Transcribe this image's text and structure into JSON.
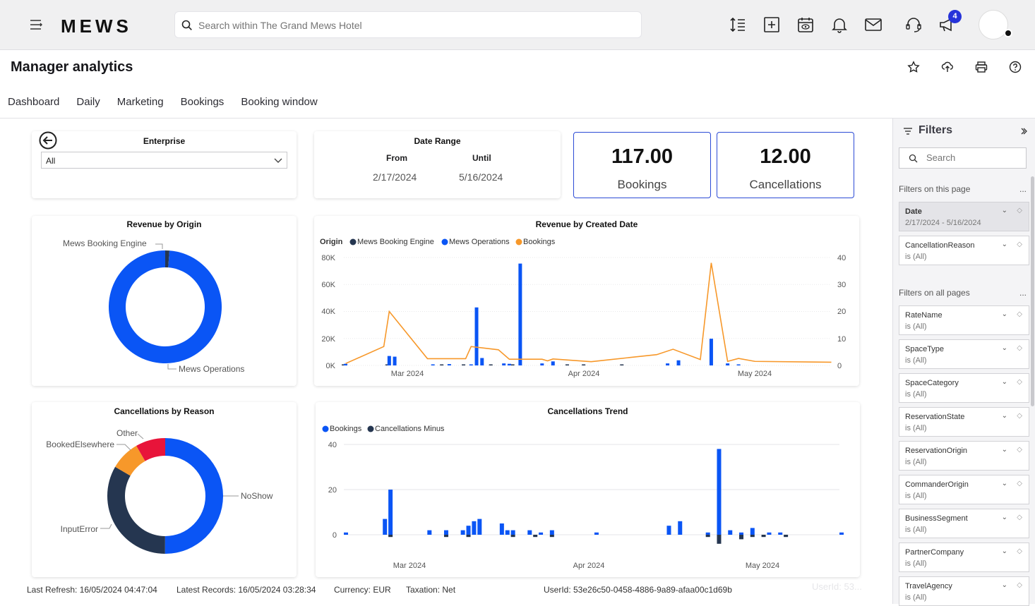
{
  "app": {
    "logo": "MEWS",
    "search_placeholder": "Search within The Grand Mews Hotel",
    "notification_count": "4"
  },
  "page": {
    "title": "Manager analytics",
    "tabs": [
      "Dashboard",
      "Daily",
      "Marketing",
      "Bookings",
      "Booking window"
    ]
  },
  "enterprise": {
    "title": "Enterprise",
    "value": "All"
  },
  "date_range": {
    "title": "Date Range",
    "from_label": "From",
    "until_label": "Until",
    "from": "2/17/2024",
    "until": "5/16/2024"
  },
  "kpis": [
    {
      "value": "117.00",
      "label": "Bookings"
    },
    {
      "value": "12.00",
      "label": "Cancellations"
    }
  ],
  "colors": {
    "blue": "#0a55f5",
    "navy": "#253650",
    "orange": "#f7982a",
    "red": "#e8143a",
    "accent": "#2c4bd6"
  },
  "chart_data": [
    {
      "type": "pie",
      "title": "Revenue by Origin",
      "labels": [
        "Mews Booking Engine",
        "Mews Operations"
      ],
      "values": [
        1.2,
        98.8
      ]
    },
    {
      "type": "bar",
      "title": "Revenue by Created Date",
      "legend_title": "Origin",
      "legend": [
        "Mews Booking Engine",
        "Mews Operations",
        "Bookings"
      ],
      "x_ticks": [
        "Mar 2024",
        "Apr 2024",
        "May 2024"
      ],
      "y_ticks": [
        "80K",
        "60K",
        "40K",
        "20K",
        "0K"
      ],
      "y2_ticks": [
        "40",
        "30",
        "20",
        "10",
        "0"
      ],
      "ylim": [
        0,
        80000
      ],
      "y2lim": [
        0,
        40
      ],
      "x_domain": [
        0,
        89
      ],
      "series": [
        {
          "name": "Mews Booking Engine",
          "kind": "bar",
          "points": [
            [
              0,
              400
            ],
            [
              8,
              200
            ],
            [
              18,
              300
            ],
            [
              22,
              400
            ],
            [
              27,
              300
            ],
            [
              31,
              800
            ],
            [
              41,
              200
            ],
            [
              44,
              300
            ],
            [
              51,
              300
            ]
          ]
        },
        {
          "name": "Mews Operations",
          "kind": "bar",
          "points": [
            [
              0,
              1200
            ],
            [
              8,
              7000
            ],
            [
              9,
              6500
            ],
            [
              16,
              800
            ],
            [
              19,
              1000
            ],
            [
              23,
              500
            ],
            [
              24,
              43000
            ],
            [
              25,
              5500
            ],
            [
              29,
              1500
            ],
            [
              30,
              1200
            ],
            [
              32,
              75500
            ],
            [
              36,
              1500
            ],
            [
              38,
              3000
            ],
            [
              59,
              1500
            ],
            [
              61,
              3800
            ],
            [
              67,
              19800
            ],
            [
              70,
              1500
            ],
            [
              72,
              600
            ]
          ]
        },
        {
          "name": "Bookings",
          "kind": "line",
          "points": [
            [
              0,
              0.7
            ],
            [
              7,
              7
            ],
            [
              8,
              20
            ],
            [
              15,
              2.5
            ],
            [
              22,
              2.5
            ],
            [
              23,
              7
            ],
            [
              28,
              5.8
            ],
            [
              30,
              2.3
            ],
            [
              36,
              2.3
            ],
            [
              37,
              1.7
            ],
            [
              38,
              2.4
            ],
            [
              45,
              1.4
            ],
            [
              57,
              4
            ],
            [
              60,
              6
            ],
            [
              65,
              2.2
            ],
            [
              67,
              38
            ],
            [
              70,
              1.5
            ],
            [
              72,
              2.6
            ],
            [
              75,
              1.5
            ],
            [
              89,
              1.2
            ]
          ]
        }
      ]
    },
    {
      "type": "pie",
      "title": "Cancellations by Reason",
      "labels": [
        "NoShow",
        "InputError",
        "BookedElsewhere",
        "Other"
      ],
      "values": [
        50,
        33.3,
        8.3,
        8.3
      ]
    },
    {
      "type": "bar",
      "title": "Cancellations Trend",
      "legend": [
        "Bookings",
        "Cancellations Minus"
      ],
      "x_ticks": [
        "Mar 2024",
        "Apr 2024",
        "May 2024"
      ],
      "y_ticks": [
        "40",
        "20",
        "0"
      ],
      "ylim": [
        -4,
        40
      ],
      "x_domain": [
        0,
        89
      ],
      "series": [
        {
          "name": "Bookings",
          "points": [
            [
              0,
              1
            ],
            [
              7,
              7
            ],
            [
              8,
              20
            ],
            [
              15,
              2
            ],
            [
              18,
              2
            ],
            [
              21,
              2
            ],
            [
              22,
              4
            ],
            [
              23,
              6
            ],
            [
              24,
              7
            ],
            [
              28,
              5
            ],
            [
              29,
              2
            ],
            [
              30,
              2
            ],
            [
              33,
              2
            ],
            [
              35,
              1
            ],
            [
              37,
              2
            ],
            [
              45,
              1
            ],
            [
              58,
              4
            ],
            [
              60,
              6
            ],
            [
              65,
              1
            ],
            [
              67,
              38
            ],
            [
              69,
              2
            ],
            [
              71,
              1
            ],
            [
              73,
              3
            ],
            [
              76,
              1
            ],
            [
              78,
              1
            ],
            [
              89,
              1
            ]
          ]
        },
        {
          "name": "Cancellations Minus",
          "points": [
            [
              8,
              -1
            ],
            [
              18,
              -1
            ],
            [
              22,
              -1
            ],
            [
              30,
              -1
            ],
            [
              34,
              -1
            ],
            [
              37,
              -1
            ],
            [
              65,
              -1
            ],
            [
              67,
              -4
            ],
            [
              71,
              -2
            ],
            [
              73,
              -1
            ],
            [
              75,
              -1
            ],
            [
              79,
              -1
            ]
          ]
        }
      ]
    }
  ],
  "filters": {
    "title": "Filters",
    "search_placeholder": "Search",
    "this_page_label": "Filters on this page",
    "all_pages_label": "Filters on all pages",
    "page_filters": [
      {
        "name": "Date",
        "value": "2/17/2024 - 5/16/2024"
      },
      {
        "name": "CancellationReason",
        "value": "is (All)"
      }
    ],
    "all_filters": [
      {
        "name": "RateName",
        "value": "is (All)"
      },
      {
        "name": "SpaceType",
        "value": "is (All)"
      },
      {
        "name": "SpaceCategory",
        "value": "is (All)"
      },
      {
        "name": "ReservationState",
        "value": "is (All)"
      },
      {
        "name": "ReservationOrigin",
        "value": "is (All)"
      },
      {
        "name": "CommanderOrigin",
        "value": "is (All)"
      },
      {
        "name": "BusinessSegment",
        "value": "is (All)"
      },
      {
        "name": "PartnerCompany",
        "value": "is (All)"
      },
      {
        "name": "TravelAgency",
        "value": "is (All)"
      }
    ]
  },
  "footer": {
    "last_refresh": "Last Refresh: 16/05/2024 04:47:04",
    "latest_records": "Latest Records: 16/05/2024 03:28:34",
    "currency": "Currency: EUR",
    "taxation": "Taxation: Net",
    "user_id": "UserId: 53e26c50-0458-4886-9a89-afaa00c1d69b",
    "ghost_user": "UserId: 53..."
  }
}
